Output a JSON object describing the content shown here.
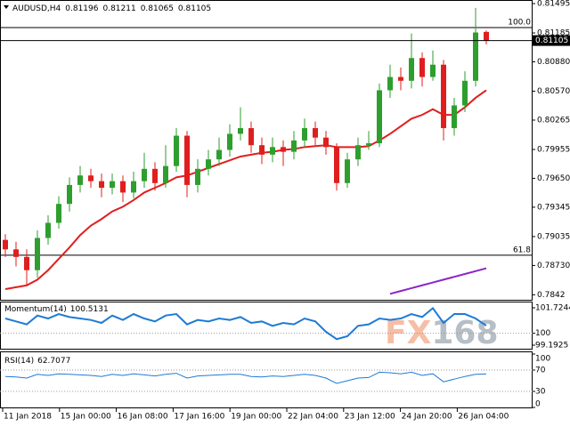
{
  "chart_data": [
    {
      "type": "candlestick",
      "symbol": "AUDUSD,H4",
      "up_color": "#2e9e2e",
      "down_color": "#e01e1e",
      "open": [
        0.79,
        0.789,
        0.7882,
        0.7868,
        0.7902,
        0.7918,
        0.7938,
        0.7958,
        0.7968,
        0.7962,
        0.7955,
        0.7962,
        0.795,
        0.7962,
        0.7975,
        0.796,
        0.7978,
        0.801,
        0.7958,
        0.7975,
        0.7985,
        0.7995,
        0.8012,
        0.8018,
        0.8,
        0.799,
        0.7998,
        0.7993,
        0.8005,
        0.8018,
        0.8008,
        0.7998,
        0.796,
        0.7985,
        0.8,
        0.8002,
        0.8058,
        0.8072,
        0.8068,
        0.8092,
        0.8072,
        0.8085,
        0.8018,
        0.8042,
        0.8068,
        0.81196
      ],
      "high": [
        0.7906,
        0.7898,
        0.789,
        0.791,
        0.7926,
        0.7946,
        0.7966,
        0.7978,
        0.7975,
        0.797,
        0.797,
        0.7968,
        0.7972,
        0.7992,
        0.7982,
        0.8,
        0.8018,
        0.8015,
        0.7985,
        0.7995,
        0.8008,
        0.8022,
        0.804,
        0.8025,
        0.8008,
        0.8008,
        0.8005,
        0.8015,
        0.8028,
        0.8025,
        0.8015,
        0.8002,
        0.7992,
        0.8008,
        0.8015,
        0.8065,
        0.8085,
        0.8082,
        0.8118,
        0.8098,
        0.81,
        0.809,
        0.805,
        0.8078,
        0.8145,
        0.81211
      ],
      "low": [
        0.7882,
        0.7872,
        0.7852,
        0.786,
        0.7895,
        0.7912,
        0.793,
        0.795,
        0.7955,
        0.7945,
        0.7948,
        0.794,
        0.7944,
        0.7955,
        0.7952,
        0.7955,
        0.7972,
        0.7945,
        0.795,
        0.7968,
        0.7978,
        0.7988,
        0.8005,
        0.7992,
        0.798,
        0.7982,
        0.7978,
        0.7985,
        0.7998,
        0.8,
        0.799,
        0.7952,
        0.7955,
        0.7978,
        0.7995,
        0.7998,
        0.805,
        0.8058,
        0.806,
        0.8062,
        0.8068,
        0.8005,
        0.801,
        0.8035,
        0.8062,
        0.81065
      ],
      "close": [
        0.789,
        0.7882,
        0.7868,
        0.7902,
        0.7918,
        0.7938,
        0.7958,
        0.7968,
        0.7962,
        0.7955,
        0.7962,
        0.795,
        0.7962,
        0.7975,
        0.796,
        0.7978,
        0.801,
        0.7958,
        0.7975,
        0.7985,
        0.7995,
        0.8012,
        0.8018,
        0.8,
        0.799,
        0.7998,
        0.7993,
        0.8005,
        0.8018,
        0.8008,
        0.7998,
        0.796,
        0.7985,
        0.8,
        0.8002,
        0.8058,
        0.8072,
        0.8068,
        0.8092,
        0.8072,
        0.8085,
        0.8018,
        0.8042,
        0.8068,
        0.8119,
        0.81105
      ],
      "series": [
        {
          "color": "#e01e1e",
          "values": [
            0.7848,
            0.785,
            0.7852,
            0.7858,
            0.7868,
            0.788,
            0.7892,
            0.7905,
            0.7915,
            0.7922,
            0.793,
            0.7935,
            0.7942,
            0.795,
            0.7955,
            0.796,
            0.7966,
            0.7968,
            0.7972,
            0.7976,
            0.798,
            0.7984,
            0.7988,
            0.799,
            0.7992,
            0.7993,
            0.7995,
            0.7996,
            0.7998,
            0.7999,
            0.8,
            0.7998,
            0.7998,
            0.7998,
            0.7999,
            0.8005,
            0.8012,
            0.802,
            0.8028,
            0.8032,
            0.8038,
            0.8032,
            0.8032,
            0.804,
            0.805,
            0.8058
          ]
        },
        {
          "color": "#8e24c8",
          "values": [
            null,
            null,
            null,
            null,
            null,
            null,
            null,
            null,
            null,
            null,
            null,
            null,
            null,
            null,
            null,
            null,
            null,
            null,
            null,
            null,
            null,
            null,
            null,
            null,
            null,
            null,
            null,
            null,
            null,
            null,
            null,
            null,
            null,
            null,
            null,
            null,
            0.7843,
            0.7846,
            0.7849,
            0.7852,
            0.7855,
            0.7858,
            0.7861,
            0.7864,
            0.7867,
            0.787
          ]
        }
      ],
      "fib_levels": [
        {
          "label": "100.0",
          "price": 0.81242
        },
        {
          "label": "61.8",
          "price": 0.78838
        }
      ],
      "ylim": [
        0.78358,
        0.81533
      ],
      "yticks": [
        0.81495,
        0.81185,
        {
          "value": 0.8088,
          "label": "0.80880"
        },
        {
          "value": 0.8057,
          "label": "0.80570"
        },
        0.80265,
        0.79955,
        {
          "value": 0.7965,
          "label": "0.79650"
        },
        0.79345,
        0.79035,
        {
          "value": 0.7873,
          "label": "0.78730"
        },
        0.7842
      ],
      "xlabels": [
        "11 Jan 2018",
        "15 Jan 00:00",
        "16 Jan 08:00",
        "17 Jan 16:00",
        "19 Jan 00:00",
        "22 Jan 04:00",
        "23 Jan 12:00",
        "24 Jan 20:00",
        "26 Jan 04:00"
      ],
      "watermark": [
        "FX",
        "168"
      ]
    },
    {
      "type": "line",
      "name": "Momentum(14)",
      "color": "#1e7ad6",
      "values": [
        101.0,
        100.8,
        100.6,
        101.2,
        101.0,
        101.3,
        101.1,
        101.0,
        100.9,
        100.7,
        101.2,
        100.9,
        101.3,
        101.0,
        100.8,
        101.2,
        101.3,
        100.6,
        100.9,
        100.8,
        101.0,
        100.9,
        101.1,
        100.7,
        100.8,
        100.5,
        100.7,
        100.6,
        101.0,
        100.8,
        100.1,
        99.6,
        99.8,
        100.5,
        100.6,
        101.0,
        100.9,
        101.0,
        101.3,
        101.1,
        101.7,
        100.7,
        101.3,
        101.3,
        101.0,
        100.5131
      ],
      "ylim": [
        98.951,
        102.086
      ],
      "yticks": [
        101.7244,
        100,
        99.1925
      ],
      "levels": [
        100
      ]
    },
    {
      "type": "line",
      "name": "RSI(14)",
      "color": "#1e7ad6",
      "values": [
        58,
        57,
        55,
        62,
        60,
        63,
        62,
        61,
        60,
        58,
        62,
        60,
        63,
        61,
        59,
        62,
        64,
        55,
        59,
        60,
        61,
        62,
        62,
        58,
        57,
        59,
        58,
        60,
        62,
        60,
        55,
        45,
        50,
        55,
        56,
        66,
        65,
        63,
        66,
        60,
        63,
        48,
        53,
        58,
        62,
        62.7077
      ],
      "ylim": [
        0,
        100
      ],
      "yticks": [
        100,
        70,
        30,
        0
      ],
      "levels": [
        70,
        30
      ]
    }
  ]
}
